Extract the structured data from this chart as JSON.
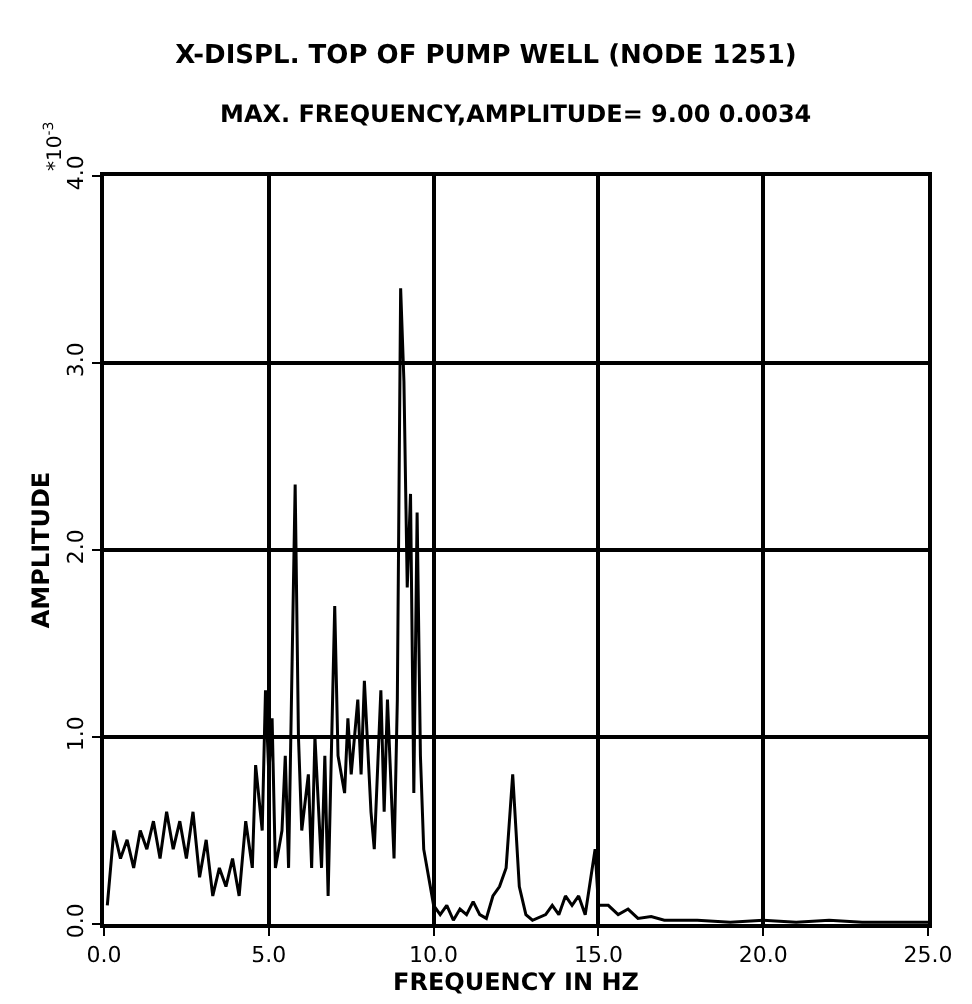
{
  "chart_data": {
    "type": "line",
    "title": "X-DISPL. TOP OF PUMP WELL (NODE 1251)",
    "subtitle": "MAX. FREQUENCY,AMPLITUDE= 9.00 0.0034",
    "xlabel": "FREQUENCY IN HZ",
    "ylabel": "AMPLITUDE",
    "annotations": [
      "*10$^{-3}$"
    ],
    "x": [
      0.1,
      0.3,
      0.5,
      0.7,
      0.9,
      1.1,
      1.3,
      1.5,
      1.7,
      1.9,
      2.1,
      2.3,
      2.5,
      2.7,
      2.9,
      3.1,
      3.3,
      3.5,
      3.7,
      3.9,
      4.1,
      4.3,
      4.5,
      4.6,
      4.8,
      4.9,
      5.0,
      5.1,
      5.2,
      5.4,
      5.5,
      5.6,
      5.8,
      5.9,
      6.0,
      6.2,
      6.3,
      6.4,
      6.6,
      6.7,
      6.8,
      7.0,
      7.1,
      7.3,
      7.4,
      7.5,
      7.7,
      7.8,
      7.9,
      8.1,
      8.2,
      8.4,
      8.5,
      8.6,
      8.8,
      8.9,
      9.0,
      9.1,
      9.2,
      9.3,
      9.4,
      9.5,
      9.6,
      9.7,
      9.9,
      10.0,
      10.2,
      10.4,
      10.6,
      10.8,
      11.0,
      11.2,
      11.4,
      11.6,
      11.8,
      12.0,
      12.2,
      12.4,
      12.6,
      12.8,
      13.0,
      13.4,
      13.6,
      13.8,
      14.0,
      14.2,
      14.4,
      14.6,
      14.9,
      15.0,
      15.3,
      15.6,
      15.9,
      16.2,
      16.6,
      17.0,
      18.0,
      19.0,
      20.0,
      21.0,
      22.0,
      23.0,
      24.0,
      25.0
    ],
    "series": [
      {
        "color": "#000000",
        "values": [
          0.1,
          0.5,
          0.35,
          0.45,
          0.3,
          0.5,
          0.4,
          0.55,
          0.35,
          0.6,
          0.4,
          0.55,
          0.35,
          0.6,
          0.25,
          0.45,
          0.15,
          0.3,
          0.2,
          0.35,
          0.15,
          0.55,
          0.3,
          0.85,
          0.5,
          1.25,
          0.8,
          1.1,
          0.3,
          0.5,
          0.9,
          0.3,
          2.35,
          1.0,
          0.5,
          0.8,
          0.3,
          1.0,
          0.3,
          0.9,
          0.15,
          1.7,
          0.9,
          0.7,
          1.1,
          0.8,
          1.2,
          0.8,
          1.3,
          0.6,
          0.4,
          1.25,
          0.6,
          1.2,
          0.35,
          1.2,
          3.4,
          2.9,
          1.8,
          2.3,
          0.7,
          2.2,
          0.9,
          0.4,
          0.2,
          0.1,
          0.05,
          0.1,
          0.02,
          0.08,
          0.05,
          0.12,
          0.05,
          0.03,
          0.15,
          0.2,
          0.3,
          0.8,
          0.2,
          0.05,
          0.02,
          0.05,
          0.1,
          0.05,
          0.15,
          0.1,
          0.15,
          0.05,
          0.4,
          0.1,
          0.1,
          0.05,
          0.08,
          0.03,
          0.04,
          0.02,
          0.02,
          0.01,
          0.02,
          0.01,
          0.02,
          0.01,
          0.01,
          0.01
        ]
      }
    ],
    "xlim": [
      0,
      25
    ],
    "xticks": [
      {
        "value": 0,
        "label": "0.0"
      },
      {
        "value": 5,
        "label": "5.0"
      },
      {
        "value": 10,
        "label": "10.0"
      },
      {
        "value": 15,
        "label": "15.0"
      },
      {
        "value": 20,
        "label": "20.0"
      },
      {
        "value": 25,
        "label": "25.0"
      }
    ],
    "ylim": [
      0,
      4
    ],
    "yticks": [
      {
        "value": 0,
        "label": "0.0"
      },
      {
        "value": 1,
        "label": "1.0"
      },
      {
        "value": 2,
        "label": "2.0"
      },
      {
        "value": 3,
        "label": "3.0"
      },
      {
        "value": 4,
        "label": "4.0"
      }
    ],
    "grid": true,
    "marker": "none",
    "line_style": "solid"
  }
}
